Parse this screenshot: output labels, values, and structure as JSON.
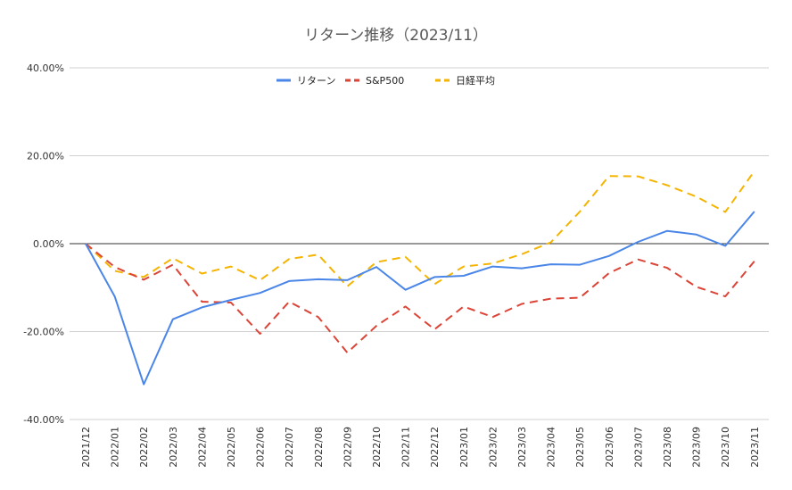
{
  "chart_data": {
    "type": "line",
    "title": "リターン推移（2023/11）",
    "xlabel": "",
    "ylabel": "",
    "ylim": [
      -0.4,
      0.4
    ],
    "yticks": [
      {
        "value": 0.4,
        "label": "40.00%"
      },
      {
        "value": 0.2,
        "label": "20.00%"
      },
      {
        "value": 0.0,
        "label": "0.00%"
      },
      {
        "value": -0.2,
        "label": "-20.00%"
      },
      {
        "value": -0.4,
        "label": "-40.00%"
      }
    ],
    "grid": true,
    "legend_position": "top-center",
    "categories": [
      "2021/12",
      "2022/01",
      "2022/02",
      "2022/03",
      "2022/04",
      "2022/05",
      "2022/06",
      "2022/07",
      "2022/08",
      "2022/09",
      "2022/10",
      "2022/11",
      "2022/12",
      "2023/01",
      "2023/02",
      "2023/03",
      "2023/04",
      "2023/05",
      "2023/06",
      "2023/07",
      "2023/08",
      "2023/09",
      "2023/10",
      "2023/11"
    ],
    "series": [
      {
        "name": "リターン",
        "color": "#4a86e8",
        "dash": "solid",
        "values": [
          0.0,
          -0.12,
          -0.32,
          -0.172,
          -0.145,
          -0.128,
          -0.112,
          -0.085,
          -0.081,
          -0.083,
          -0.053,
          -0.105,
          -0.076,
          -0.073,
          -0.052,
          -0.056,
          -0.047,
          -0.048,
          -0.028,
          0.004,
          0.029,
          0.021,
          -0.005,
          0.073
        ]
      },
      {
        "name": "S&P500",
        "color": "#db4437",
        "dash": "dashed",
        "values": [
          0.0,
          -0.053,
          -0.082,
          -0.048,
          -0.132,
          -0.134,
          -0.205,
          -0.132,
          -0.167,
          -0.248,
          -0.187,
          -0.143,
          -0.195,
          -0.143,
          -0.167,
          -0.137,
          -0.125,
          -0.123,
          -0.067,
          -0.036,
          -0.055,
          -0.098,
          -0.12,
          -0.04
        ]
      },
      {
        "name": "日経平均",
        "color": "#f4b400",
        "dash": "dashed",
        "values": [
          0.0,
          -0.062,
          -0.076,
          -0.033,
          -0.068,
          -0.052,
          -0.083,
          -0.035,
          -0.025,
          -0.097,
          -0.042,
          -0.03,
          -0.092,
          -0.052,
          -0.045,
          -0.024,
          0.003,
          0.073,
          0.154,
          0.153,
          0.133,
          0.107,
          0.072,
          0.165
        ]
      }
    ]
  }
}
